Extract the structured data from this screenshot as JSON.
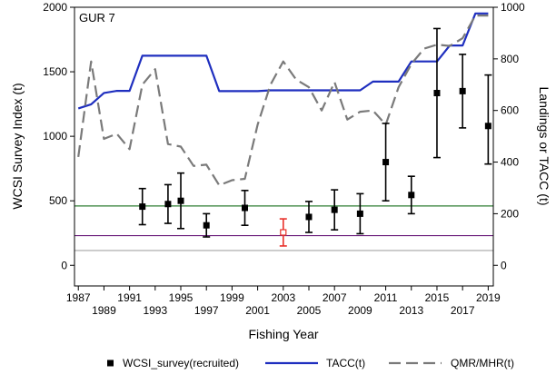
{
  "chart_data": {
    "type": "line",
    "title": "GUR 7",
    "xlabel": "Fishing Year",
    "ylabel": "WCSI Survey Index (t)",
    "y2label": "Landings or TACC (t)",
    "xlim": [
      1986.7,
      2019.4
    ],
    "ylim": [
      -160,
      2000
    ],
    "y2lim": [
      -80,
      1000
    ],
    "x_ticks_top": [
      "1987",
      "1991",
      "1995",
      "1999",
      "2003",
      "2007",
      "2011",
      "2015",
      "2019"
    ],
    "x_ticks_bottom": [
      "1989",
      "1993",
      "1997",
      "2001",
      "2005",
      "2009",
      "2013",
      "2017"
    ],
    "y_ticks": [
      "0",
      "500",
      "1000",
      "1500",
      "2000"
    ],
    "y2_ticks": [
      "0",
      "200",
      "400",
      "600",
      "800",
      "1000"
    ],
    "legend_position": "bottom",
    "reference_lines": [
      {
        "y": 460,
        "color": "#2e7d32"
      },
      {
        "y": 230,
        "color": "#6a1b7a"
      },
      {
        "y": 115,
        "color": "#a6a6a6"
      }
    ],
    "series": [
      {
        "name": "WCSI_survey(recruited)",
        "kind": "errorbar",
        "color": "#000000",
        "points": [
          {
            "x": 1992,
            "y": 455,
            "lo": 315,
            "hi": 595
          },
          {
            "x": 1994,
            "y": 475,
            "lo": 325,
            "hi": 625
          },
          {
            "x": 1995,
            "y": 500,
            "lo": 285,
            "hi": 715
          },
          {
            "x": 1997,
            "y": 310,
            "lo": 220,
            "hi": 400
          },
          {
            "x": 2000,
            "y": 445,
            "lo": 310,
            "hi": 580
          },
          {
            "x": 2003,
            "y": 255,
            "lo": 150,
            "hi": 360,
            "color": "#e8302a"
          },
          {
            "x": 2005,
            "y": 375,
            "lo": 255,
            "hi": 495
          },
          {
            "x": 2007,
            "y": 430,
            "lo": 275,
            "hi": 585
          },
          {
            "x": 2009,
            "y": 400,
            "lo": 245,
            "hi": 555
          },
          {
            "x": 2011,
            "y": 800,
            "lo": 500,
            "hi": 1100
          },
          {
            "x": 2013,
            "y": 545,
            "lo": 400,
            "hi": 690
          },
          {
            "x": 2015,
            "y": 1335,
            "lo": 835,
            "hi": 1835
          },
          {
            "x": 2017,
            "y": 1350,
            "lo": 1065,
            "hi": 1635
          },
          {
            "x": 2019,
            "y": 1080,
            "lo": 785,
            "hi": 1475
          }
        ]
      },
      {
        "name": "TACC(t)",
        "kind": "line",
        "axis": "right",
        "color": "#1f2fbf",
        "x": [
          1987,
          1988,
          1989,
          1990,
          1991,
          1992,
          1993,
          1994,
          1995,
          1996,
          1997,
          1998,
          1999,
          2000,
          2001,
          2002,
          2003,
          2004,
          2005,
          2006,
          2007,
          2008,
          2009,
          2010,
          2011,
          2012,
          2013,
          2014,
          2015,
          2016,
          2017,
          2018,
          2019
        ],
        "y": [
          608,
          624,
          668,
          676,
          676,
          812,
          812,
          812,
          812,
          812,
          812,
          675,
          675,
          675,
          675,
          678,
          678,
          678,
          678,
          678,
          678,
          678,
          678,
          712,
          712,
          712,
          790,
          790,
          790,
          852,
          852,
          976,
          976
        ]
      },
      {
        "name": "QMR/MHR(t)",
        "kind": "line",
        "dashed": true,
        "axis": "right",
        "color": "#7a7a7a",
        "x": [
          1987,
          1988,
          1989,
          1990,
          1991,
          1992,
          1993,
          1994,
          1995,
          1996,
          1997,
          1998,
          1999,
          2000,
          2001,
          2002,
          2003,
          2004,
          2005,
          2006,
          2007,
          2008,
          2009,
          2010,
          2011,
          2012,
          2013,
          2014,
          2015,
          2016,
          2017,
          2018,
          2019
        ],
        "y": [
          420,
          790,
          490,
          510,
          450,
          700,
          760,
          470,
          460,
          385,
          390,
          310,
          330,
          335,
          545,
          700,
          790,
          720,
          690,
          600,
          710,
          565,
          595,
          600,
          545,
          690,
          780,
          840,
          855,
          850,
          880,
          968,
          968
        ]
      }
    ]
  }
}
